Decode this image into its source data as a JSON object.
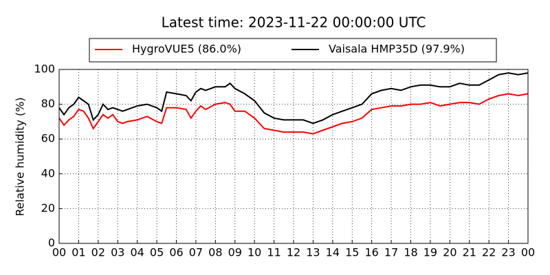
{
  "chart_data": {
    "type": "line",
    "title": "Latest time: 2023-11-22 00:00:00 UTC",
    "y_label": "Relative humidity (%)",
    "x": [
      0,
      0.25,
      0.5,
      0.75,
      1,
      1.25,
      1.5,
      1.75,
      2,
      2.25,
      2.5,
      2.75,
      3,
      3.25,
      3.5,
      4,
      4.5,
      5,
      5.25,
      5.5,
      6,
      6.5,
      6.75,
      7,
      7.25,
      7.5,
      8,
      8.5,
      8.75,
      9,
      9.5,
      10,
      10.5,
      11,
      11.5,
      12,
      12.5,
      13,
      13.5,
      14,
      14.5,
      15,
      15.5,
      16,
      16.5,
      17,
      17.5,
      18,
      18.5,
      19,
      19.5,
      20,
      20.5,
      21,
      21.5,
      22,
      22.5,
      23,
      23.5,
      24
    ],
    "series": [
      {
        "name": "HygroVUE5 (86.0%)",
        "color": "#ff0000",
        "values": [
          72,
          68,
          71,
          73,
          77,
          76,
          72,
          66,
          70,
          74,
          72,
          74,
          70,
          69,
          70,
          71,
          73,
          70,
          69,
          78,
          78,
          77,
          72,
          76,
          79,
          77,
          80,
          81,
          80,
          76,
          76,
          72,
          66,
          65,
          64,
          64,
          64,
          63,
          65,
          67,
          69,
          70,
          72,
          77,
          78,
          79,
          79,
          80,
          80,
          81,
          79,
          80,
          81,
          81,
          80,
          83,
          85,
          86,
          85,
          86
        ]
      },
      {
        "name": "Vaisala HMP35D (97.9%)",
        "color": "#000000",
        "values": [
          78,
          74,
          78,
          80,
          84,
          82,
          80,
          71,
          74,
          80,
          77,
          78,
          77,
          76,
          77,
          79,
          80,
          78,
          76,
          87,
          86,
          85,
          82,
          87,
          89,
          88,
          90,
          90,
          92,
          89,
          86,
          82,
          75,
          72,
          71,
          71,
          71,
          69,
          71,
          74,
          76,
          78,
          80,
          86,
          88,
          89,
          88,
          90,
          91,
          91,
          90,
          90,
          92,
          91,
          91,
          94,
          97,
          98,
          97,
          98
        ]
      }
    ],
    "xlim": [
      0,
      24
    ],
    "xticks": [
      {
        "value": 0,
        "label": "00"
      },
      {
        "value": 1,
        "label": "01"
      },
      {
        "value": 2,
        "label": "02"
      },
      {
        "value": 3,
        "label": "03"
      },
      {
        "value": 4,
        "label": "04"
      },
      {
        "value": 5,
        "label": "05"
      },
      {
        "value": 6,
        "label": "06"
      },
      {
        "value": 7,
        "label": "07"
      },
      {
        "value": 8,
        "label": "08"
      },
      {
        "value": 9,
        "label": "09"
      },
      {
        "value": 10,
        "label": "10"
      },
      {
        "value": 11,
        "label": "11"
      },
      {
        "value": 12,
        "label": "12"
      },
      {
        "value": 13,
        "label": "13"
      },
      {
        "value": 14,
        "label": "14"
      },
      {
        "value": 15,
        "label": "15"
      },
      {
        "value": 16,
        "label": "16"
      },
      {
        "value": 17,
        "label": "17"
      },
      {
        "value": 18,
        "label": "18"
      },
      {
        "value": 19,
        "label": "19"
      },
      {
        "value": 20,
        "label": "20"
      },
      {
        "value": 21,
        "label": "21"
      },
      {
        "value": 22,
        "label": "22"
      },
      {
        "value": 23,
        "label": "23"
      },
      {
        "value": 24,
        "label": "00"
      }
    ],
    "ylim": [
      0,
      100
    ],
    "yticks": [
      0,
      20,
      40,
      60,
      80,
      100
    ],
    "grid": true
  }
}
